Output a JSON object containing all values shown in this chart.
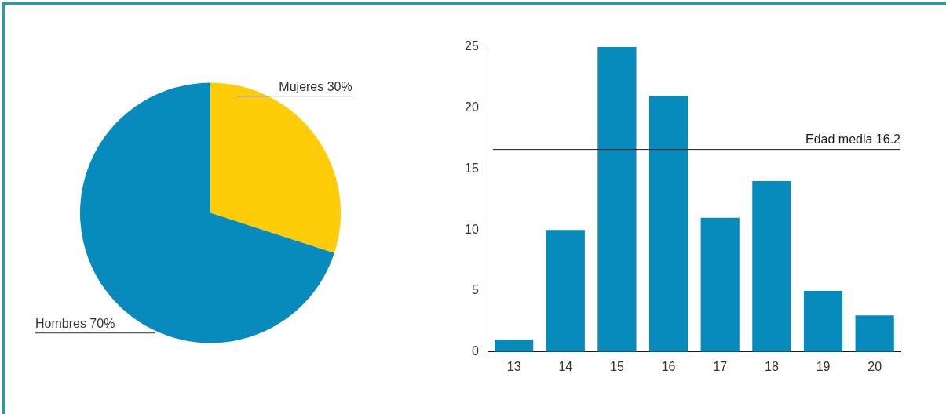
{
  "chart_data": [
    {
      "type": "pie",
      "categories": [
        "Mujeres 30%",
        "Hombres 70%"
      ],
      "values": [
        30,
        70
      ],
      "colors": [
        "#ffcc0a",
        "#078bbd"
      ],
      "legend": false
    },
    {
      "type": "bar",
      "categories": [
        "13",
        "14",
        "15",
        "16",
        "17",
        "18",
        "19",
        "20"
      ],
      "values": [
        1,
        10,
        25,
        21,
        11,
        14,
        5,
        3
      ],
      "color": "#078bbd",
      "ylim": [
        0,
        25
      ],
      "yticks": [
        0,
        5,
        10,
        15,
        20,
        25
      ],
      "grid": false,
      "legend": false,
      "ref_lines": [
        {
          "axis": "y",
          "value": 16.6,
          "label": "Edad media 16.2",
          "color": "#1a1a1a"
        }
      ]
    }
  ]
}
